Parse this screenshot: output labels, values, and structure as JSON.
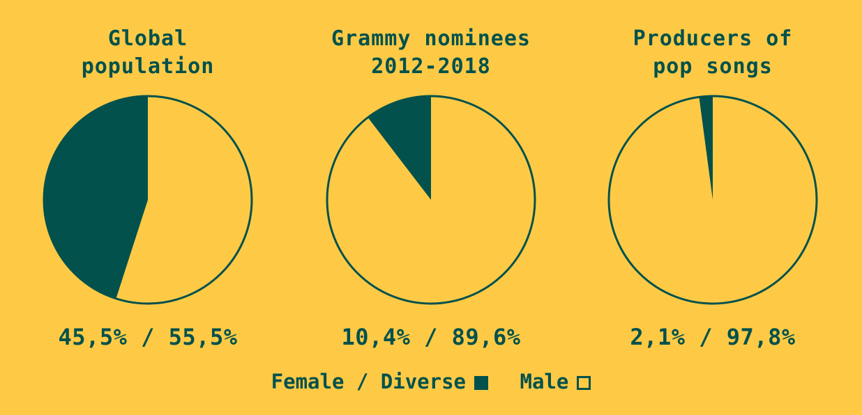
{
  "colors": {
    "background": "#FECA46",
    "female": "#02514C",
    "male": "#FECA46",
    "outline": "#02514C"
  },
  "chart_data": [
    {
      "type": "pie",
      "title_lines": [
        "Global",
        "population"
      ],
      "categories": [
        "Female / Diverse",
        "Male"
      ],
      "values": [
        45.5,
        55.5
      ],
      "value_label": "45,5% / 55,5%"
    },
    {
      "type": "pie",
      "title_lines": [
        "Grammy nominees",
        "2012-2018"
      ],
      "categories": [
        "Female / Diverse",
        "Male"
      ],
      "values": [
        10.4,
        89.6
      ],
      "value_label": "10,4% / 89,6%"
    },
    {
      "type": "pie",
      "title_lines": [
        "Producers of",
        "pop songs"
      ],
      "categories": [
        "Female / Diverse",
        "Male"
      ],
      "values": [
        2.1,
        97.8
      ],
      "value_label": "2,1% / 97,8%"
    }
  ],
  "legend": {
    "female_label": "Female / Diverse",
    "male_label": "Male"
  }
}
